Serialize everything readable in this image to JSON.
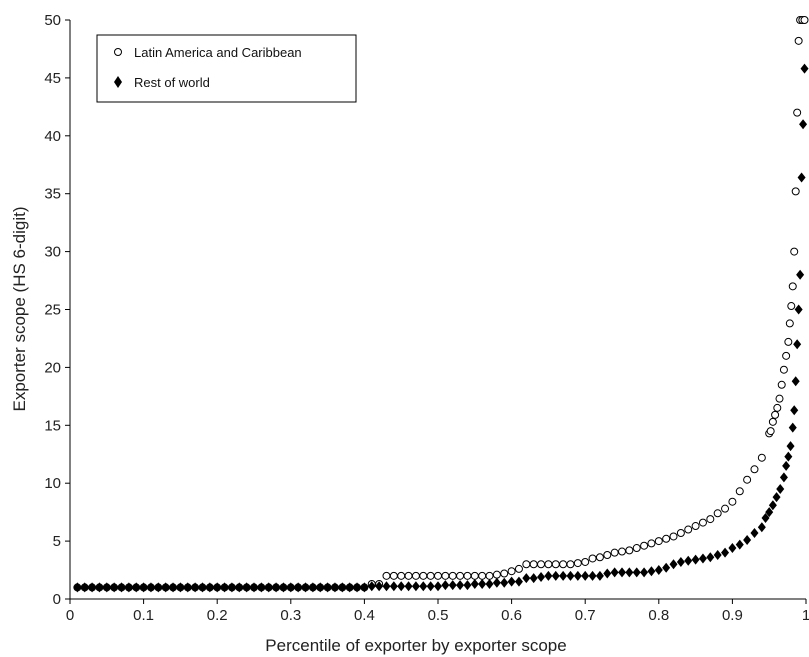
{
  "chart_data": {
    "type": "scatter",
    "xlabel": "Percentile of exporter by exporter scope",
    "ylabel": "Exporter scope (HS 6-digit)",
    "xlim": [
      0,
      1
    ],
    "ylim": [
      0,
      50
    ],
    "xticks": [
      "0",
      "0.1",
      "0.2",
      "0.3",
      "0.4",
      "0.5",
      "0.6",
      "0.7",
      "0.8",
      "0.9",
      "1"
    ],
    "yticks": [
      "0",
      "5",
      "10",
      "15",
      "20",
      "25",
      "30",
      "35",
      "40",
      "45",
      "50"
    ],
    "grid": false,
    "legend_position": "top-left",
    "series": [
      {
        "name": "Latin America and Caribbean",
        "marker": "open-circle",
        "color": "#000000",
        "points": [
          [
            0.41,
            1.3
          ],
          [
            0.42,
            1.3
          ],
          [
            0.43,
            2
          ],
          [
            0.44,
            2
          ],
          [
            0.45,
            2
          ],
          [
            0.46,
            2
          ],
          [
            0.47,
            2
          ],
          [
            0.48,
            2
          ],
          [
            0.49,
            2
          ],
          [
            0.5,
            2
          ],
          [
            0.51,
            2
          ],
          [
            0.52,
            2
          ],
          [
            0.53,
            2
          ],
          [
            0.54,
            2
          ],
          [
            0.55,
            2
          ],
          [
            0.56,
            2
          ],
          [
            0.57,
            2
          ],
          [
            0.58,
            2.1
          ],
          [
            0.59,
            2.2
          ],
          [
            0.6,
            2.4
          ],
          [
            0.61,
            2.6
          ],
          [
            0.62,
            3
          ],
          [
            0.63,
            3
          ],
          [
            0.64,
            3
          ],
          [
            0.65,
            3
          ],
          [
            0.66,
            3
          ],
          [
            0.67,
            3
          ],
          [
            0.68,
            3
          ],
          [
            0.69,
            3.1
          ],
          [
            0.7,
            3.2
          ],
          [
            0.71,
            3.5
          ],
          [
            0.72,
            3.6
          ],
          [
            0.73,
            3.8
          ],
          [
            0.74,
            4
          ],
          [
            0.75,
            4.1
          ],
          [
            0.76,
            4.2
          ],
          [
            0.77,
            4.4
          ],
          [
            0.78,
            4.6
          ],
          [
            0.79,
            4.8
          ],
          [
            0.8,
            5
          ],
          [
            0.81,
            5.2
          ],
          [
            0.82,
            5.4
          ],
          [
            0.83,
            5.7
          ],
          [
            0.84,
            6
          ],
          [
            0.85,
            6.3
          ],
          [
            0.86,
            6.6
          ],
          [
            0.87,
            6.9
          ],
          [
            0.88,
            7.4
          ],
          [
            0.89,
            7.8
          ],
          [
            0.9,
            8.4
          ],
          [
            0.91,
            9.3
          ],
          [
            0.92,
            10.3
          ],
          [
            0.93,
            11.2
          ],
          [
            0.94,
            12.2
          ],
          [
            0.95,
            14.3
          ],
          [
            0.952,
            14.5
          ],
          [
            0.955,
            15.3
          ],
          [
            0.958,
            15.9
          ],
          [
            0.961,
            16.5
          ],
          [
            0.964,
            17.3
          ],
          [
            0.967,
            18.5
          ],
          [
            0.97,
            19.8
          ],
          [
            0.973,
            21
          ],
          [
            0.976,
            22.2
          ],
          [
            0.978,
            23.8
          ],
          [
            0.98,
            25.3
          ],
          [
            0.982,
            27
          ],
          [
            0.984,
            30
          ],
          [
            0.986,
            35.2
          ],
          [
            0.988,
            42
          ],
          [
            0.99,
            48.2
          ],
          [
            0.992,
            50
          ],
          [
            0.995,
            50
          ],
          [
            0.998,
            50
          ]
        ]
      },
      {
        "name": "Rest of world",
        "marker": "filled-diamond",
        "color": "#000000",
        "points": [
          [
            0.41,
            1.1
          ],
          [
            0.42,
            1.1
          ],
          [
            0.43,
            1.1
          ],
          [
            0.44,
            1.1
          ],
          [
            0.45,
            1.1
          ],
          [
            0.46,
            1.1
          ],
          [
            0.47,
            1.1
          ],
          [
            0.48,
            1.1
          ],
          [
            0.49,
            1.1
          ],
          [
            0.5,
            1.1
          ],
          [
            0.51,
            1.2
          ],
          [
            0.52,
            1.2
          ],
          [
            0.53,
            1.2
          ],
          [
            0.54,
            1.2
          ],
          [
            0.55,
            1.3
          ],
          [
            0.56,
            1.3
          ],
          [
            0.57,
            1.3
          ],
          [
            0.58,
            1.4
          ],
          [
            0.59,
            1.4
          ],
          [
            0.6,
            1.5
          ],
          [
            0.61,
            1.5
          ],
          [
            0.62,
            1.8
          ],
          [
            0.63,
            1.8
          ],
          [
            0.64,
            1.9
          ],
          [
            0.65,
            2
          ],
          [
            0.66,
            2
          ],
          [
            0.67,
            2
          ],
          [
            0.68,
            2
          ],
          [
            0.69,
            2
          ],
          [
            0.7,
            2
          ],
          [
            0.71,
            2
          ],
          [
            0.72,
            2
          ],
          [
            0.73,
            2.2
          ],
          [
            0.74,
            2.3
          ],
          [
            0.75,
            2.3
          ],
          [
            0.76,
            2.3
          ],
          [
            0.77,
            2.3
          ],
          [
            0.78,
            2.3
          ],
          [
            0.79,
            2.4
          ],
          [
            0.8,
            2.5
          ],
          [
            0.81,
            2.7
          ],
          [
            0.82,
            3
          ],
          [
            0.83,
            3.2
          ],
          [
            0.84,
            3.3
          ],
          [
            0.85,
            3.4
          ],
          [
            0.86,
            3.5
          ],
          [
            0.87,
            3.6
          ],
          [
            0.88,
            3.8
          ],
          [
            0.89,
            4
          ],
          [
            0.9,
            4.4
          ],
          [
            0.91,
            4.7
          ],
          [
            0.92,
            5.1
          ],
          [
            0.93,
            5.7
          ],
          [
            0.94,
            6.2
          ],
          [
            0.945,
            7
          ],
          [
            0.95,
            7.5
          ],
          [
            0.955,
            8.1
          ],
          [
            0.96,
            8.8
          ],
          [
            0.965,
            9.5
          ],
          [
            0.97,
            10.5
          ],
          [
            0.973,
            11.5
          ],
          [
            0.976,
            12.3
          ],
          [
            0.979,
            13.2
          ],
          [
            0.982,
            14.8
          ],
          [
            0.984,
            16.3
          ],
          [
            0.986,
            18.8
          ],
          [
            0.988,
            22
          ],
          [
            0.99,
            25
          ],
          [
            0.992,
            28
          ],
          [
            0.994,
            36.4
          ],
          [
            0.996,
            41
          ],
          [
            0.998,
            45.8
          ]
        ]
      }
    ]
  }
}
